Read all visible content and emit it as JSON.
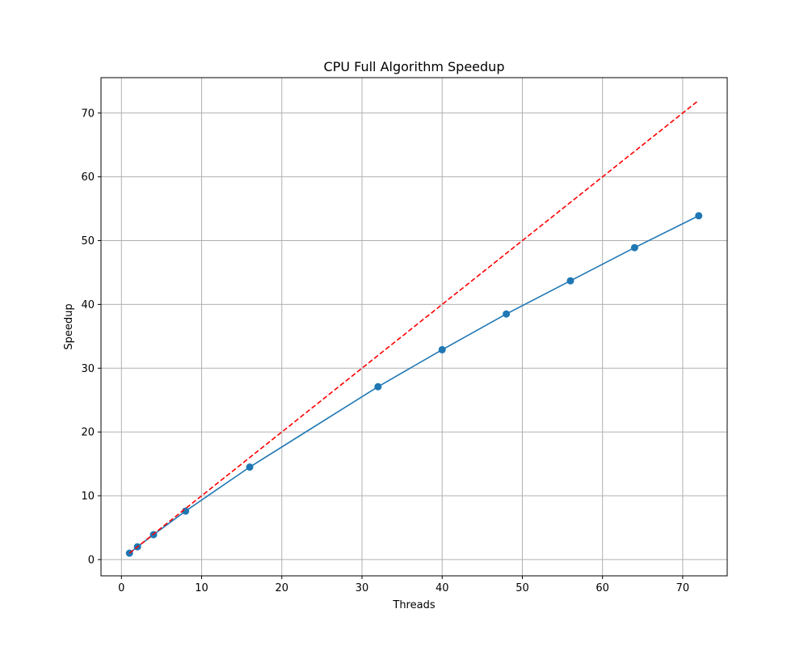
{
  "chart_data": {
    "type": "line",
    "title": "CPU Full Algorithm Speedup",
    "xlabel": "Threads",
    "ylabel": "Speedup",
    "xlim": [
      -2.55,
      75.55
    ],
    "ylim": [
      -2.55,
      75.55
    ],
    "xticks": [
      0,
      10,
      20,
      30,
      40,
      50,
      60,
      70
    ],
    "yticks": [
      0,
      10,
      20,
      30,
      40,
      50,
      60,
      70
    ],
    "grid": true,
    "series": [
      {
        "style": "solid-markers",
        "color": "#1f77b4",
        "x": [
          1,
          2,
          4,
          8,
          16,
          32,
          40,
          48,
          56,
          64,
          72
        ],
        "y": [
          1.0,
          2.0,
          3.9,
          7.6,
          14.5,
          27.1,
          32.9,
          38.5,
          43.7,
          48.9,
          53.9
        ]
      },
      {
        "style": "dashed",
        "color": "#ff0000",
        "x": [
          1,
          72
        ],
        "y": [
          1,
          72
        ]
      }
    ]
  }
}
